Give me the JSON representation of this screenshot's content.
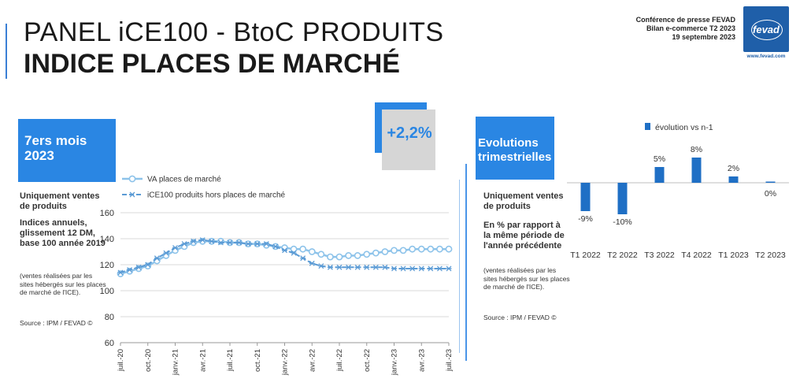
{
  "header": {
    "title_line1": "PANEL iCE100 - BtoC PRODUITS",
    "title_line2": "INDICE PLACES DE MARCHÉ",
    "conference": [
      "Conférence de presse FEVAD",
      "Bilan e-commerce T2 2023",
      "19 septembre 2023"
    ],
    "logo_text": "fevad",
    "logo_url": "www.fevad.com"
  },
  "left_panel": {
    "box_lines": [
      "7ers mois",
      "2023"
    ],
    "badge": "+2,2%",
    "bold1": "Uniquement ventes de produits",
    "bold2": "Indices annuels, glissement 12 DM, base 100 année 2019",
    "small": "(ventes réalisées par les sites hébergés sur les places de marché de l'ICE).",
    "source": "Source : IPM / FEVAD ©"
  },
  "right_panel": {
    "box_lines": [
      "Evolutions",
      "trimestrielles"
    ],
    "bold1": "Uniquement ventes de produits",
    "bold2": "En % par rapport à la même période de l'année précédente",
    "small": "(ventes réalisées par les sites hébergés sur les places de marché de l'ICE).",
    "source": "Source : IPM / FEVAD ©"
  },
  "colors": {
    "accent": "#2a86e3",
    "series_va": "#8dc3ea",
    "series_ice": "#5b9bd5",
    "bars": "#1f6fc5",
    "badge_bg": "#d6d6d6"
  },
  "chart_data": [
    {
      "type": "line",
      "x_ticks": [
        "juil.-20",
        "oct.-20",
        "janv.-21",
        "avr.-21",
        "juil.-21",
        "oct.-21",
        "janv.-22",
        "avr.-22",
        "juil.-22",
        "oct.-22",
        "janv.-23",
        "avr.-23",
        "juil.-23"
      ],
      "ylim": [
        60,
        160
      ],
      "yticks": [
        60,
        80,
        100,
        120,
        140,
        160
      ],
      "grid": true,
      "legend_position": "top-left",
      "series": [
        {
          "name": "VA places de marché",
          "values": [
            113,
            115,
            117,
            119,
            123,
            127,
            131,
            134,
            137,
            138,
            138,
            138,
            137,
            137,
            136,
            136,
            135,
            134,
            133,
            132,
            132,
            130,
            128,
            126,
            126,
            127,
            127,
            128,
            129,
            130,
            131,
            131,
            132,
            132,
            132,
            132,
            132
          ]
        },
        {
          "name": "iCE100 produits hors places de marché",
          "values": [
            114,
            116,
            118,
            120,
            125,
            129,
            133,
            136,
            138,
            139,
            138,
            137,
            137,
            137,
            136,
            136,
            136,
            134,
            131,
            129,
            125,
            121,
            119,
            118,
            118,
            118,
            118,
            118,
            118,
            118,
            117,
            117,
            117,
            117,
            117,
            117,
            117
          ]
        }
      ]
    },
    {
      "type": "bar",
      "legend": "évolution vs n-1",
      "legend_position": "top",
      "categories": [
        "T1 2022",
        "T2 2022",
        "T3 2022",
        "T4 2022",
        "T1 2023",
        "T2 2023"
      ],
      "values": [
        -9,
        -10,
        5,
        8,
        2,
        0
      ],
      "labels": [
        "-9%",
        "-10%",
        "5%",
        "8%",
        "2%",
        "0%"
      ]
    }
  ]
}
